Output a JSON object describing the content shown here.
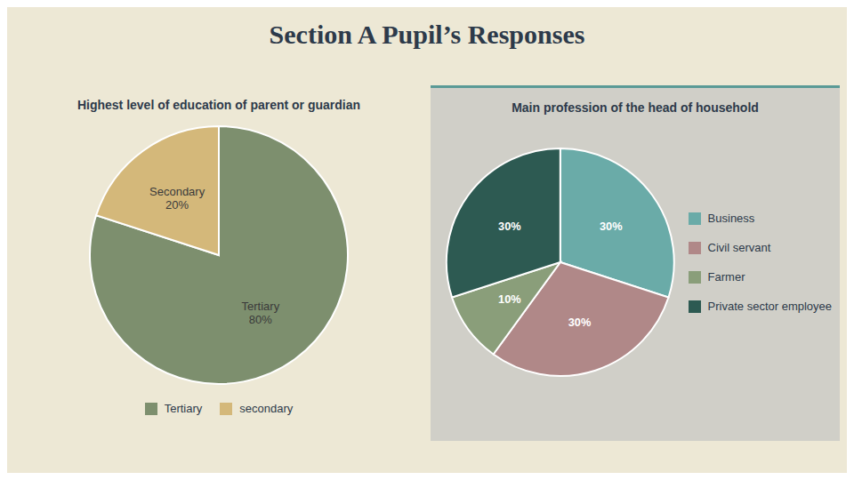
{
  "title": "Section A Pupil’s Responses",
  "chart_data": [
    {
      "type": "pie",
      "title": "Highest level of education of parent or guardian",
      "categories": [
        "Tertiary",
        "secondary"
      ],
      "values": [
        80,
        20
      ],
      "value_labels": [
        "Tertiary\n80%",
        "Secondary\n20%"
      ],
      "colors": [
        "#7d8f6e",
        "#d4b87a"
      ],
      "data_labels": true,
      "legend": "bottom"
    },
    {
      "type": "pie",
      "title": "Main profession of the head of household",
      "categories": [
        "Business",
        "Civil servant",
        "Farmer",
        "Private sector employee"
      ],
      "values": [
        30,
        30,
        10,
        30
      ],
      "value_labels": [
        "30%",
        "30%",
        "10%",
        "30%"
      ],
      "colors": [
        "#6aaba8",
        "#b08888",
        "#8a9e7a",
        "#2d5a52"
      ],
      "data_labels": true,
      "legend": "right"
    }
  ]
}
